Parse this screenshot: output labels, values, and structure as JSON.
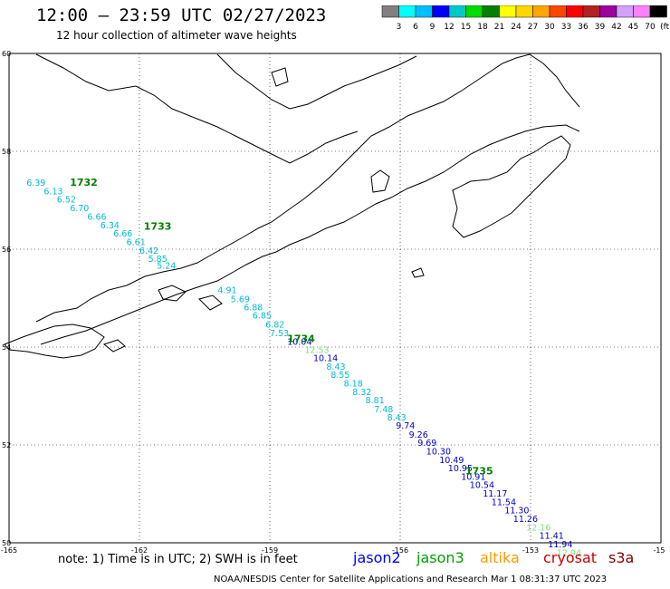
{
  "header": {
    "title": "12:00 – 23:59 UTC 02/27/2023",
    "subtitle": "12 hour collection of altimeter wave heights"
  },
  "scale": {
    "ticks": [
      "3",
      "6",
      "9",
      "12",
      "15",
      "18",
      "21",
      "24",
      "27",
      "30",
      "33",
      "36",
      "39",
      "42",
      "45",
      "70"
    ],
    "unit": "(ft)",
    "colors": [
      "#808080",
      "#00ffff",
      "#00bfff",
      "#0000ff",
      "#00c8c8",
      "#00dc00",
      "#008000",
      "#ffff00",
      "#ffd700",
      "#ffa500",
      "#ff4500",
      "#ff0000",
      "#b22222",
      "#a000a0",
      "#d2a0ff",
      "#ff80ff",
      "#000000"
    ]
  },
  "axes": {
    "lat_labels": [
      "60",
      "58",
      "56",
      "54",
      "52",
      "50"
    ],
    "lon_labels": [
      "-165",
      "-162",
      "-159",
      "-156",
      "-153",
      "-15"
    ]
  },
  "track": {
    "time_labels": [
      {
        "text": "1732",
        "lon": -163.6,
        "lat": 57.3
      },
      {
        "text": "1733",
        "lon": -161.9,
        "lat": 56.4
      },
      {
        "text": "1734",
        "lon": -158.6,
        "lat": 54.1
      },
      {
        "text": "1735",
        "lon": -154.5,
        "lat": 51.4
      }
    ],
    "points": [
      {
        "v": "6.39",
        "lon": -164.6,
        "lat": 57.3,
        "sat": "jason3"
      },
      {
        "v": "6.13",
        "lon": -164.2,
        "lat": 57.12,
        "sat": "jason3"
      },
      {
        "v": "6.52",
        "lon": -163.9,
        "lat": 56.95,
        "sat": "jason3"
      },
      {
        "v": "6.70",
        "lon": -163.6,
        "lat": 56.78,
        "sat": "jason3"
      },
      {
        "v": "6.66",
        "lon": -163.2,
        "lat": 56.6,
        "sat": "jason3"
      },
      {
        "v": "6.34",
        "lon": -162.9,
        "lat": 56.43,
        "sat": "jason3"
      },
      {
        "v": "6.66",
        "lon": -162.6,
        "lat": 56.26,
        "sat": "jason3"
      },
      {
        "v": "6.61",
        "lon": -162.3,
        "lat": 56.08,
        "sat": "jason3"
      },
      {
        "v": "6.42",
        "lon": -162.0,
        "lat": 55.91,
        "sat": "jason3"
      },
      {
        "v": "5.85",
        "lon": -161.8,
        "lat": 55.74,
        "sat": "jason3"
      },
      {
        "v": "5.24",
        "lon": -161.6,
        "lat": 55.6,
        "sat": "jason3"
      },
      {
        "v": "4.91",
        "lon": -160.2,
        "lat": 55.1,
        "sat": "jason3"
      },
      {
        "v": "5.69",
        "lon": -159.9,
        "lat": 54.92,
        "sat": "jason3"
      },
      {
        "v": "6.88",
        "lon": -159.6,
        "lat": 54.75,
        "sat": "jason3"
      },
      {
        "v": "6.85",
        "lon": -159.4,
        "lat": 54.58,
        "sat": "jason3"
      },
      {
        "v": "6.82",
        "lon": -159.1,
        "lat": 54.4,
        "sat": "jason3"
      },
      {
        "v": "7.53",
        "lon": -159.0,
        "lat": 54.22,
        "sat": "jason3"
      },
      {
        "v": "10.04",
        "lon": -158.6,
        "lat": 54.05,
        "sat": "jason2"
      },
      {
        "v": "12.53",
        "lon": -158.2,
        "lat": 53.88,
        "sat": "jason3_light"
      },
      {
        "v": "10.14",
        "lon": -158.0,
        "lat": 53.71,
        "sat": "jason2"
      },
      {
        "v": "8.43",
        "lon": -157.7,
        "lat": 53.54,
        "sat": "jason3"
      },
      {
        "v": "8.55",
        "lon": -157.6,
        "lat": 53.37,
        "sat": "jason3"
      },
      {
        "v": "8.18",
        "lon": -157.3,
        "lat": 53.19,
        "sat": "jason3"
      },
      {
        "v": "8.32",
        "lon": -157.1,
        "lat": 53.02,
        "sat": "jason3"
      },
      {
        "v": "8.81",
        "lon": -156.8,
        "lat": 52.85,
        "sat": "jason3"
      },
      {
        "v": "7.48",
        "lon": -156.6,
        "lat": 52.67,
        "sat": "jason3"
      },
      {
        "v": "8.43",
        "lon": -156.3,
        "lat": 52.5,
        "sat": "jason3"
      },
      {
        "v": "9.74",
        "lon": -156.1,
        "lat": 52.33,
        "sat": "jason2"
      },
      {
        "v": "9.26",
        "lon": -155.8,
        "lat": 52.15,
        "sat": "jason2"
      },
      {
        "v": "9.69",
        "lon": -155.6,
        "lat": 51.98,
        "sat": "jason2"
      },
      {
        "v": "10.30",
        "lon": -155.4,
        "lat": 51.81,
        "sat": "jason2"
      },
      {
        "v": "10.49",
        "lon": -155.1,
        "lat": 51.63,
        "sat": "jason2"
      },
      {
        "v": "10.95",
        "lon": -154.9,
        "lat": 51.46,
        "sat": "jason2"
      },
      {
        "v": "10.91",
        "lon": -154.6,
        "lat": 51.29,
        "sat": "jason2"
      },
      {
        "v": "10.54",
        "lon": -154.4,
        "lat": 51.12,
        "sat": "jason2"
      },
      {
        "v": "11.17",
        "lon": -154.1,
        "lat": 50.94,
        "sat": "jason2"
      },
      {
        "v": "11.54",
        "lon": -153.9,
        "lat": 50.77,
        "sat": "jason2"
      },
      {
        "v": "11.30",
        "lon": -153.6,
        "lat": 50.6,
        "sat": "jason2"
      },
      {
        "v": "11.26",
        "lon": -153.4,
        "lat": 50.43,
        "sat": "jason2"
      },
      {
        "v": "12.16",
        "lon": -153.1,
        "lat": 50.25,
        "sat": "jason3_light"
      },
      {
        "v": "11.41",
        "lon": -152.8,
        "lat": 50.08,
        "sat": "jason2"
      },
      {
        "v": "11.94",
        "lon": -152.6,
        "lat": 49.91,
        "sat": "jason2"
      },
      {
        "v": "12.94",
        "lon": -152.4,
        "lat": 49.73,
        "sat": "jason3_light"
      }
    ]
  },
  "sat_colors": {
    "jason2": "#0000c8",
    "jason3": "#00bcd0",
    "jason3_light": "#80e080",
    "time": "#008000"
  },
  "footer": {
    "note": "note: 1) Time is in UTC; 2) SWH is in feet",
    "satellites": [
      {
        "name": "jason2",
        "color": "#0000ff"
      },
      {
        "name": "jason3",
        "color": "#00a000"
      },
      {
        "name": "altika",
        "color": "#ff9900"
      },
      {
        "name": "cryosat",
        "color": "#cc0000"
      },
      {
        "name": "s3a",
        "color": "#800000"
      }
    ],
    "credit": "NOAA/NESDIS Center for Satellite Applications and Research   Mar  1 08:31:37 UTC 2023"
  }
}
